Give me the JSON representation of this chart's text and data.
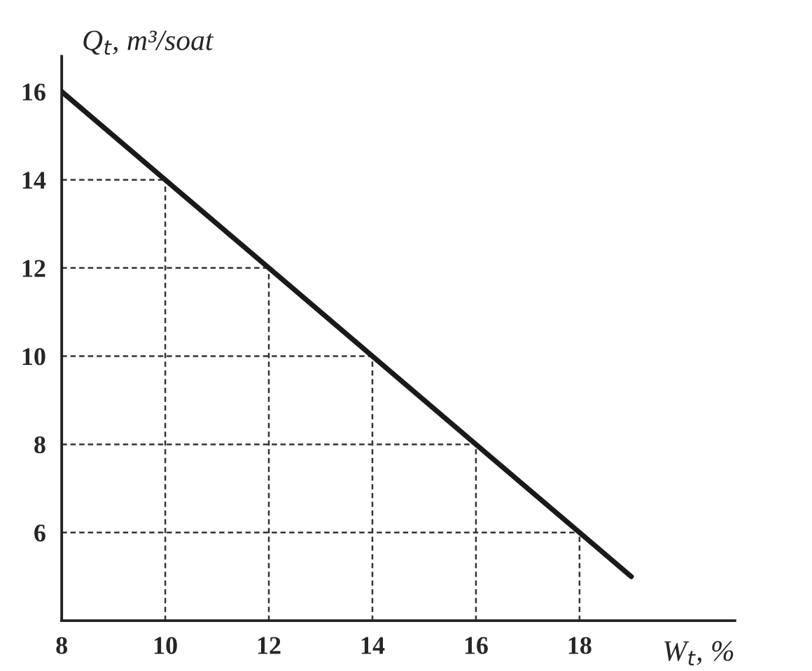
{
  "chart_data": {
    "type": "line",
    "xlabel": "W$_{t}$, %",
    "ylabel": "Q$_{t}$, m³/soat",
    "x": [
      8,
      10,
      12,
      14,
      16,
      18,
      19
    ],
    "series": [
      {
        "color": "#1a1a1a",
        "values": [
          16,
          14,
          12,
          10,
          8,
          6,
          5
        ]
      }
    ],
    "xlim": [
      8,
      21
    ],
    "ylim": [
      4,
      16.8
    ],
    "xticks": [
      8,
      10,
      12,
      14,
      16,
      18
    ],
    "yticks": [
      6,
      8,
      10,
      12,
      14,
      16
    ],
    "grid": true,
    "line_style": "solid",
    "marker": "none"
  }
}
